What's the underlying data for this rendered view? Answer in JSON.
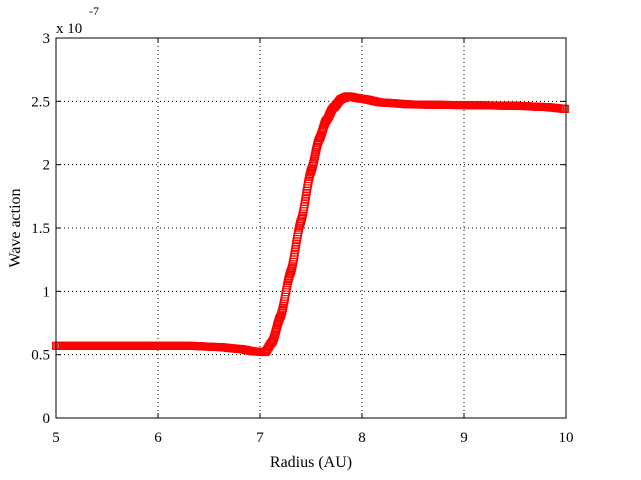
{
  "chart_data": {
    "type": "scatter",
    "title": "",
    "xlabel": "Radius (AU)",
    "ylabel": "Wave action",
    "xlim": [
      5,
      10
    ],
    "ylim": [
      0,
      3
    ],
    "y_scale_multiplier": "x 10",
    "y_scale_exponent": "-7",
    "x_ticks": [
      "5",
      "6",
      "7",
      "8",
      "9",
      "10"
    ],
    "y_ticks": [
      "0",
      "0.5",
      "1",
      "1.5",
      "2",
      "2.5",
      "3"
    ],
    "grid": true,
    "marker": "square",
    "marker_color": "#ff0000",
    "series": [
      {
        "x": [
          5.0,
          5.5,
          6.0,
          6.3,
          6.6,
          6.8,
          6.95,
          7.05,
          7.12,
          7.2,
          7.3,
          7.4,
          7.5,
          7.58,
          7.65,
          7.72,
          7.8,
          7.86,
          8.0,
          8.2,
          8.5,
          9.0,
          9.5,
          9.8,
          10.0
        ],
        "y": [
          0.57,
          0.57,
          0.57,
          0.57,
          0.56,
          0.545,
          0.525,
          0.52,
          0.6,
          0.8,
          1.15,
          1.55,
          1.95,
          2.2,
          2.35,
          2.45,
          2.52,
          2.54,
          2.52,
          2.49,
          2.475,
          2.47,
          2.465,
          2.455,
          2.44
        ]
      }
    ]
  }
}
